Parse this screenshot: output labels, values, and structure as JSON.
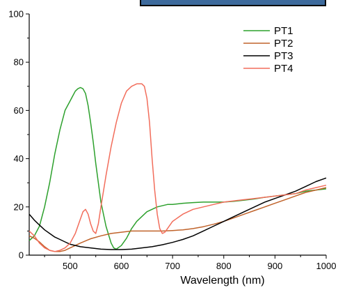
{
  "chart_data": {
    "type": "line",
    "xlabel": "Wavelength (nm)",
    "ylabel": "",
    "xlim": [
      420,
      1000
    ],
    "ylim": [
      0,
      100
    ],
    "xticks": [
      500,
      600,
      700,
      800,
      900,
      1000
    ],
    "yticks": [
      0,
      20,
      40,
      60,
      80,
      100
    ],
    "grid": false,
    "legend_position": "top-right",
    "series": [
      {
        "name": "PT1",
        "color": "#2ca02c",
        "x": [
          420,
          430,
          440,
          450,
          460,
          470,
          480,
          490,
          500,
          505,
          510,
          515,
          520,
          525,
          530,
          535,
          540,
          545,
          550,
          555,
          560,
          570,
          580,
          585,
          590,
          600,
          610,
          620,
          630,
          650,
          670,
          690,
          700,
          720,
          740,
          760,
          780,
          800,
          820,
          840,
          860,
          880,
          900,
          920,
          940,
          960,
          980,
          1000
        ],
        "y": [
          6,
          8,
          12,
          20,
          30,
          42,
          52,
          60,
          64,
          66,
          68,
          69,
          69.5,
          69,
          67,
          62,
          55,
          47,
          38,
          30,
          22,
          12,
          5,
          3,
          2.5,
          4,
          7,
          11,
          14,
          18,
          20,
          21,
          21,
          21.5,
          21.8,
          22,
          22,
          22,
          22.3,
          22.8,
          23.3,
          24,
          24.5,
          25,
          25.5,
          26.5,
          27,
          27.5
        ]
      },
      {
        "name": "PT2",
        "color": "#c0632b",
        "x": [
          420,
          430,
          440,
          450,
          460,
          470,
          480,
          490,
          500,
          520,
          540,
          560,
          580,
          600,
          620,
          640,
          660,
          680,
          700,
          720,
          740,
          760,
          780,
          800,
          820,
          840,
          860,
          880,
          900,
          920,
          940,
          960,
          980,
          1000
        ],
        "y": [
          8,
          7,
          5.5,
          3.5,
          2,
          1.5,
          1.5,
          2,
          3,
          5,
          6.8,
          8,
          9,
          9.5,
          10,
          10,
          10,
          10,
          10.2,
          10.5,
          11,
          11.8,
          12.8,
          14,
          15.5,
          17,
          18.5,
          20,
          21.5,
          23,
          24.5,
          26,
          27,
          28
        ]
      },
      {
        "name": "PT3",
        "color": "#000000",
        "x": [
          420,
          430,
          440,
          450,
          460,
          470,
          480,
          490,
          500,
          520,
          540,
          560,
          580,
          600,
          620,
          640,
          660,
          680,
          700,
          720,
          740,
          760,
          780,
          800,
          820,
          840,
          860,
          880,
          900,
          920,
          940,
          960,
          980,
          1000
        ],
        "y": [
          17,
          14.5,
          12.5,
          10.5,
          9,
          7.5,
          6.5,
          5.5,
          4.5,
          3.5,
          3,
          2.5,
          2.3,
          2.3,
          2.5,
          3,
          3.5,
          4.3,
          5.3,
          6.5,
          8,
          10,
          12,
          14,
          16,
          18,
          20,
          22,
          23.5,
          25,
          26.5,
          28.5,
          30.5,
          32
        ]
      },
      {
        "name": "PT4",
        "color": "#f26d5b",
        "x": [
          420,
          430,
          440,
          450,
          460,
          470,
          480,
          490,
          500,
          510,
          520,
          525,
          530,
          535,
          540,
          545,
          550,
          555,
          560,
          570,
          580,
          590,
          600,
          610,
          620,
          630,
          640,
          645,
          650,
          655,
          660,
          665,
          670,
          675,
          680,
          685,
          690,
          700,
          720,
          740,
          760,
          780,
          800,
          820,
          840,
          860,
          880,
          900,
          920,
          940,
          960,
          980,
          1000
        ],
        "y": [
          10,
          8,
          5,
          3,
          2,
          1.5,
          2,
          3,
          5,
          9,
          15,
          18,
          19,
          17,
          13,
          10,
          9,
          13,
          20,
          33,
          45,
          55,
          63,
          68,
          70,
          71,
          71,
          70,
          65,
          55,
          40,
          27,
          17,
          11,
          9,
          9.5,
          11,
          14,
          17,
          19,
          20,
          21,
          22,
          22.5,
          23,
          23.5,
          24,
          24.5,
          25,
          25.5,
          27,
          28,
          29
        ]
      }
    ]
  }
}
